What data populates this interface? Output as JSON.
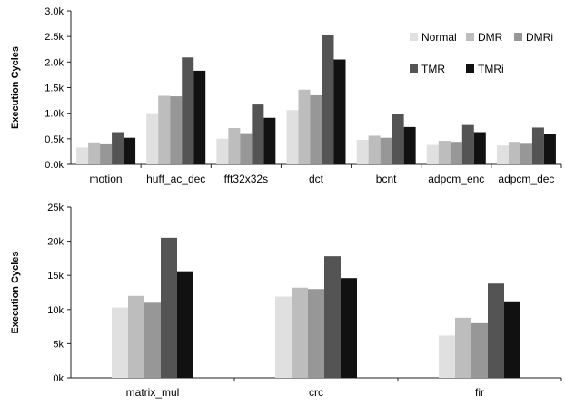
{
  "colors": {
    "Normal": "#e0e0e0",
    "DMR": "#bdbdbd",
    "DMRi": "#979797",
    "TMR": "#545454",
    "TMRi": "#111111"
  },
  "chart_data": [
    {
      "type": "bar",
      "ylabel": "Execution Cycles",
      "ylim": [
        0,
        3.0
      ],
      "yticks": [
        "0.0k",
        "0.5k",
        "1.0k",
        "1.5k",
        "2.0k",
        "2.5k",
        "3.0k"
      ],
      "grid": false,
      "legend": "top-right",
      "categories": [
        "motion",
        "huff_ac_dec",
        "fft32x32s",
        "dct",
        "bcnt",
        "adpcm_enc",
        "adpcm_dec"
      ],
      "series": [
        {
          "name": "Normal",
          "values": [
            0.33,
            1.0,
            0.5,
            1.06,
            0.48,
            0.38,
            0.37
          ]
        },
        {
          "name": "DMR",
          "values": [
            0.43,
            1.34,
            0.71,
            1.46,
            0.56,
            0.46,
            0.44
          ]
        },
        {
          "name": "DMRi",
          "values": [
            0.41,
            1.33,
            0.61,
            1.35,
            0.52,
            0.44,
            0.42
          ]
        },
        {
          "name": "TMR",
          "values": [
            0.63,
            2.09,
            1.17,
            2.53,
            0.98,
            0.77,
            0.72
          ]
        },
        {
          "name": "TMRi",
          "values": [
            0.52,
            1.83,
            0.91,
            2.05,
            0.73,
            0.63,
            0.59
          ]
        }
      ]
    },
    {
      "type": "bar",
      "ylabel": "Execution Cycles",
      "ylim": [
        0,
        25
      ],
      "yticks": [
        "0k",
        "5k",
        "10k",
        "15k",
        "20k",
        "25k"
      ],
      "grid": false,
      "categories": [
        "matrix_mul",
        "crc",
        "fir"
      ],
      "series": [
        {
          "name": "Normal",
          "values": [
            10.3,
            11.9,
            6.2
          ]
        },
        {
          "name": "DMR",
          "values": [
            12.0,
            13.2,
            8.8
          ]
        },
        {
          "name": "DMRi",
          "values": [
            11.0,
            13.0,
            8.0
          ]
        },
        {
          "name": "TMR",
          "values": [
            20.5,
            17.8,
            13.8
          ]
        },
        {
          "name": "TMRi",
          "values": [
            15.6,
            14.6,
            11.2
          ]
        }
      ]
    }
  ]
}
